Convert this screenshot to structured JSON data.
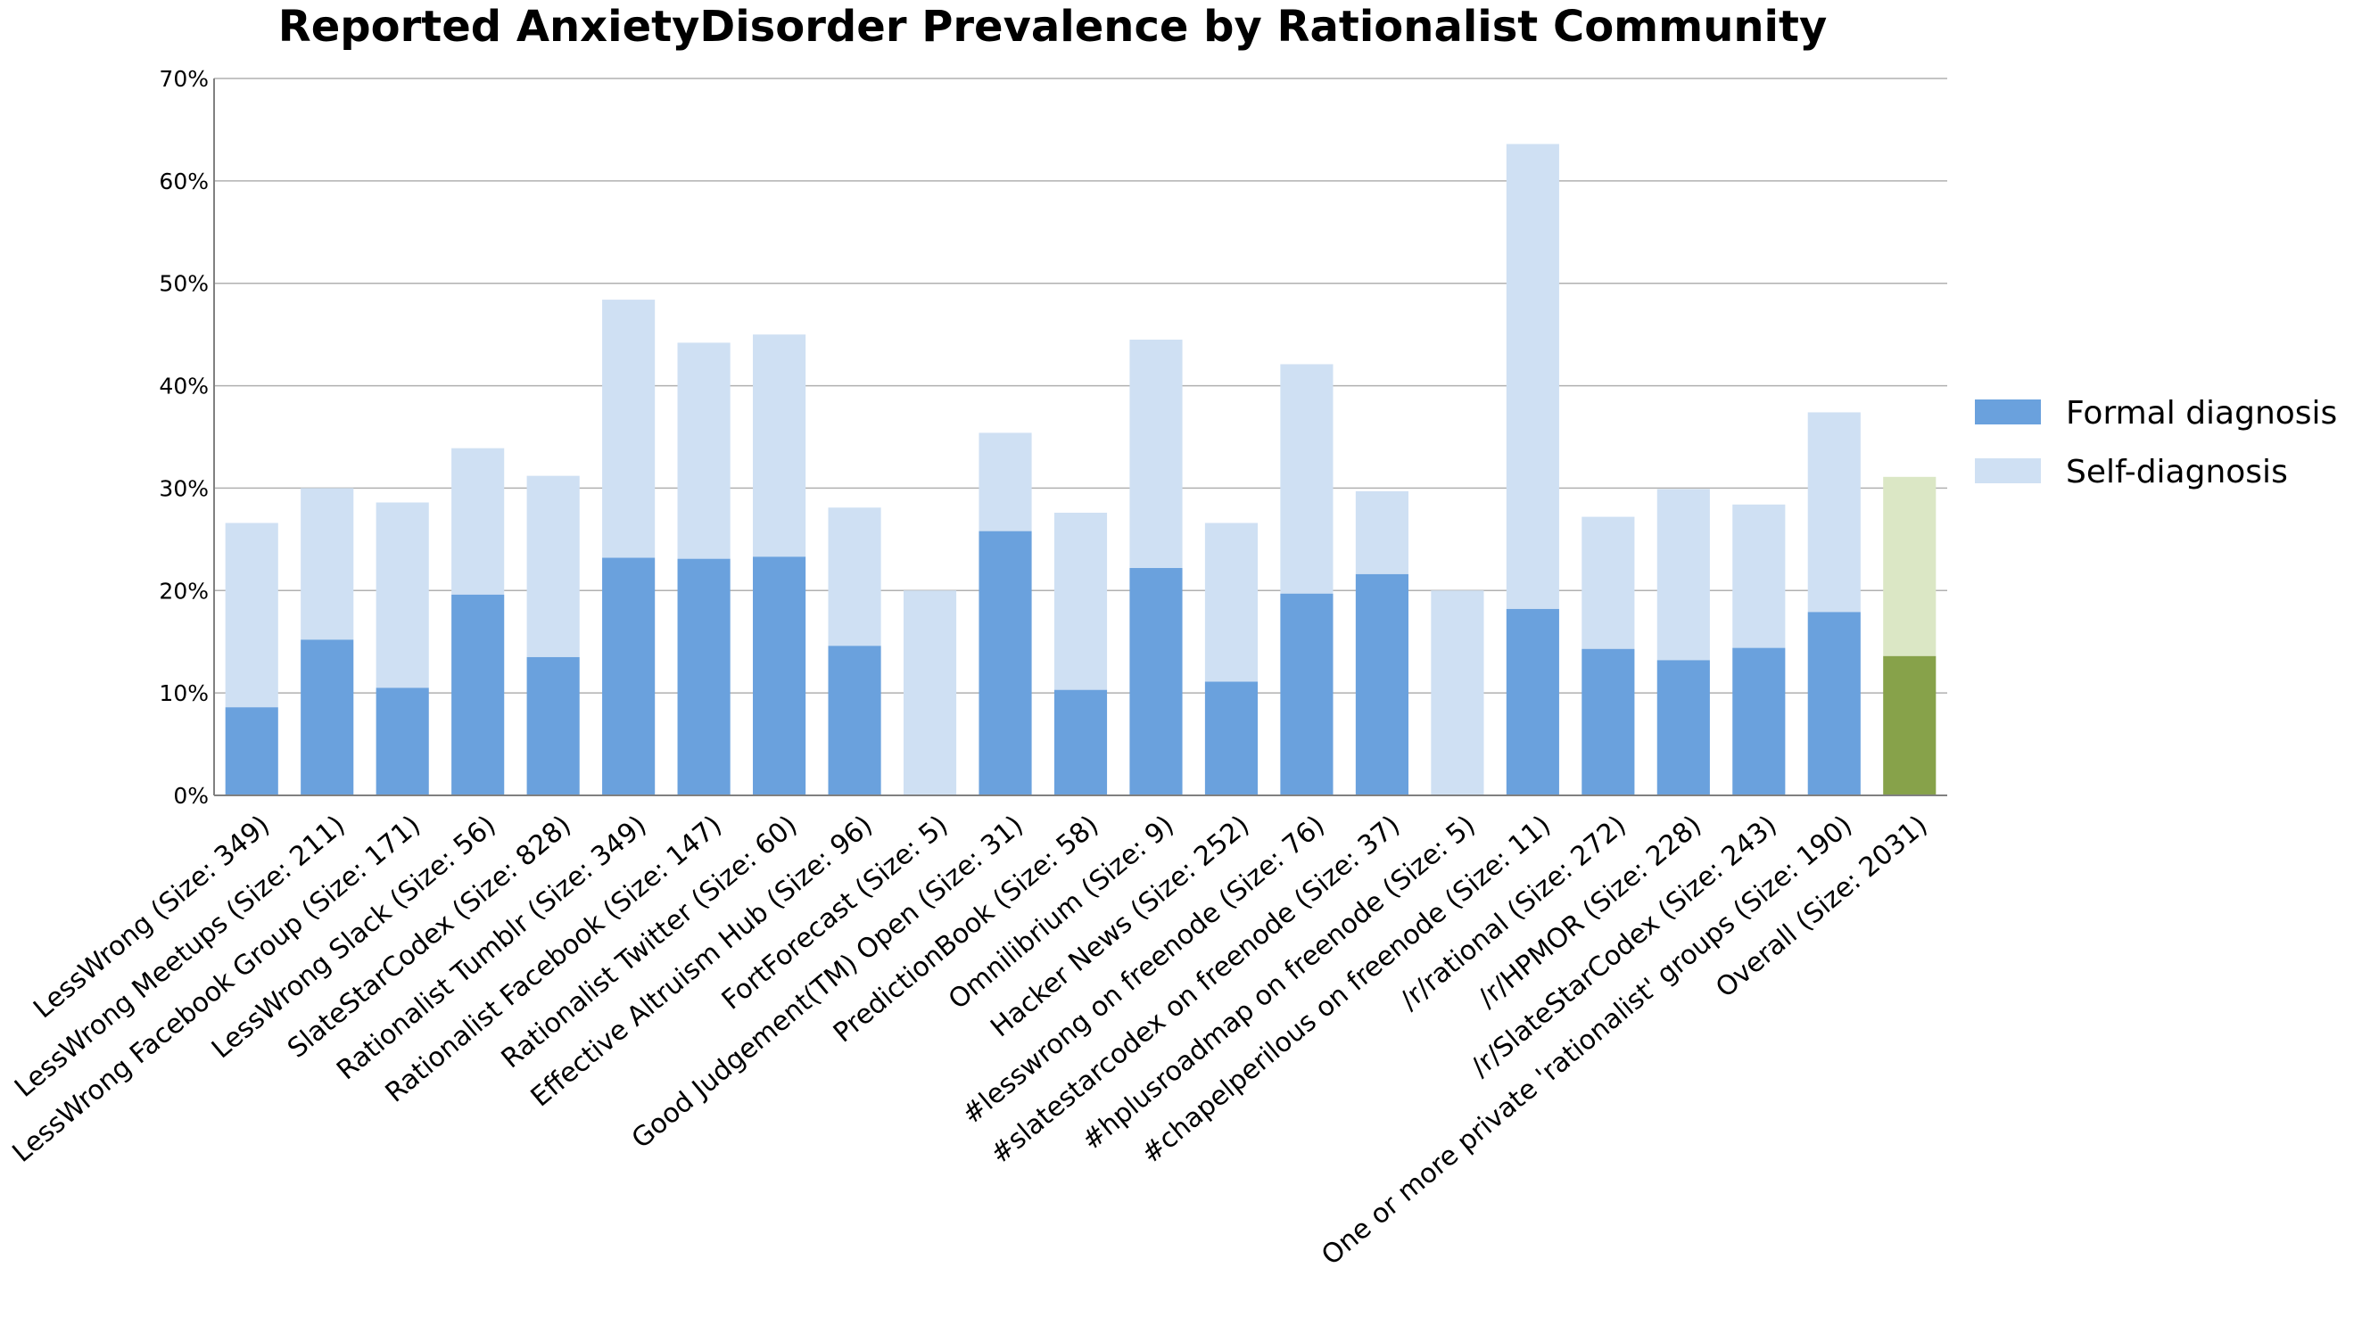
{
  "chart_data": {
    "type": "bar",
    "stacked": true,
    "title": "Reported AnxietyDisorder Prevalence by Rationalist Community",
    "xlabel": "",
    "ylabel": "",
    "ylim": [
      0,
      70
    ],
    "y_tick_labels": [
      "0%",
      "10%",
      "20%",
      "30%",
      "40%",
      "50%",
      "60%",
      "70%"
    ],
    "y_ticks": [
      0,
      10,
      20,
      30,
      40,
      50,
      60,
      70
    ],
    "grid": true,
    "legend_position": "right",
    "categories": [
      "LessWrong (Size: 349)",
      "LessWrong Meetups (Size: 211)",
      "LessWrong Facebook Group (Size: 171)",
      "LessWrong Slack (Size: 56)",
      "SlateStarCodex (Size: 828)",
      "Rationalist Tumblr (Size: 349)",
      "Rationalist Facebook (Size: 147)",
      "Rationalist Twitter (Size: 60)",
      "Effective Altruism Hub (Size: 96)",
      "FortForecast (Size: 5)",
      "Good Judgement(TM) Open (Size: 31)",
      "PredictionBook (Size: 58)",
      "Omnilibrium (Size: 9)",
      "Hacker News (Size: 252)",
      "#lesswrong on freenode (Size: 76)",
      "#slatestarcodex on freenode (Size: 37)",
      "#hplusroadmap on freenode (Size: 5)",
      "#chapelperilous on freenode (Size: 11)",
      "/r/rational (Size: 272)",
      "/r/HPMOR (Size: 228)",
      "/r/SlateStarCodex (Size: 243)",
      "One or more private 'rationalist' groups (Size: 190)",
      "Overall (Size: 2031)"
    ],
    "series": [
      {
        "name": "Formal diagnosis",
        "color": "#6aa1dd",
        "values": [
          8.6,
          15.2,
          10.5,
          19.6,
          13.5,
          23.2,
          23.1,
          23.3,
          14.6,
          0.0,
          25.8,
          10.3,
          22.2,
          11.1,
          19.7,
          21.6,
          0.0,
          18.2,
          14.3,
          13.2,
          14.4,
          17.9,
          13.6
        ]
      },
      {
        "name": "Self-diagnosis",
        "color": "#cfe0f3",
        "values": [
          18.0,
          14.8,
          18.1,
          14.3,
          17.7,
          25.2,
          21.1,
          21.7,
          13.5,
          20.0,
          9.6,
          17.3,
          22.3,
          15.5,
          22.4,
          8.1,
          20.0,
          45.4,
          12.9,
          16.7,
          14.0,
          19.5,
          17.5
        ]
      }
    ],
    "highlight": {
      "category": "Overall (Size: 2031)",
      "formal_color": "#87a24a",
      "self_color": "#dbe7c5"
    }
  }
}
